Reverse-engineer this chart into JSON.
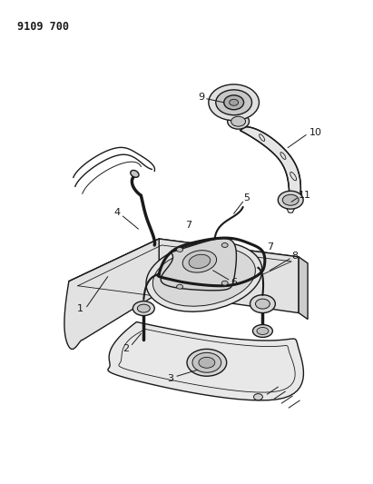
{
  "title_number": "9109 700",
  "bg_color": "#ffffff",
  "line_color": "#1a1a1a",
  "fig_width": 4.11,
  "fig_height": 5.33,
  "dpi": 100
}
